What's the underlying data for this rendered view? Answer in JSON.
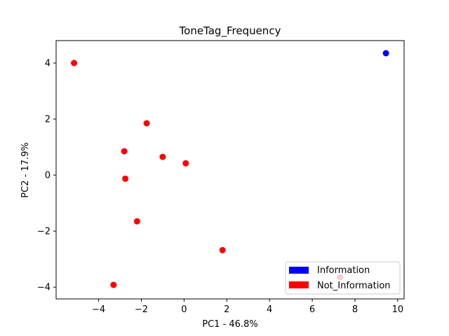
{
  "chart_data": {
    "type": "scatter",
    "title": "ToneTag_Frequency",
    "xlabel": "PC1 - 46.8%",
    "ylabel": "PC2 - 17.9%",
    "xlim": [
      -5.99,
      10.3
    ],
    "ylim": [
      -4.42,
      4.8
    ],
    "xticks": [
      -4,
      -2,
      0,
      2,
      4,
      6,
      8,
      10
    ],
    "yticks": [
      -4,
      -2,
      0,
      2,
      4
    ],
    "grid": false,
    "legend_location": "lower-right",
    "series": [
      {
        "name": "Information",
        "color": "#0000ff",
        "points": [
          {
            "x": 9.45,
            "y": 4.35
          }
        ]
      },
      {
        "name": "Not_Information",
        "color": "#ff0000",
        "points": [
          {
            "x": -5.15,
            "y": 4.0
          },
          {
            "x": -1.75,
            "y": 1.85
          },
          {
            "x": -2.8,
            "y": 0.85
          },
          {
            "x": -1.0,
            "y": 0.65
          },
          {
            "x": 0.08,
            "y": 0.42
          },
          {
            "x": -2.75,
            "y": -0.13
          },
          {
            "x": -2.2,
            "y": -1.65
          },
          {
            "x": 1.8,
            "y": -2.68
          },
          {
            "x": -3.3,
            "y": -3.92
          },
          {
            "x": 7.3,
            "y": -3.65
          }
        ]
      }
    ]
  }
}
